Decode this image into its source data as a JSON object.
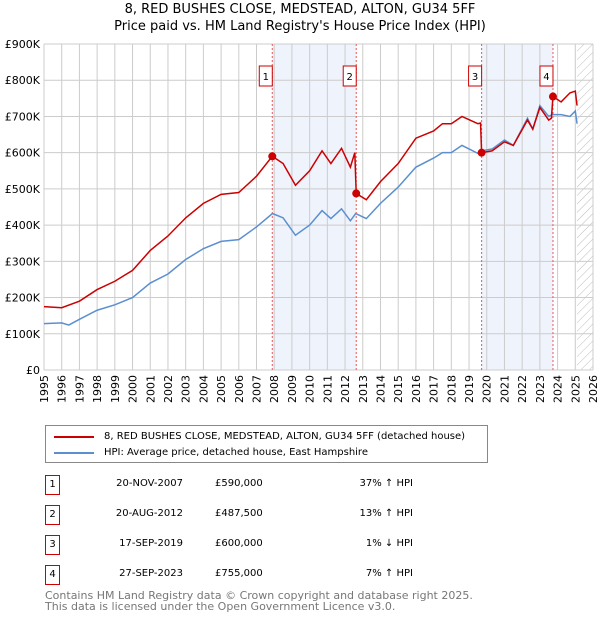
{
  "title": "8, RED BUSHES CLOSE, MEDSTEAD, ALTON, GU34 5FF",
  "subtitle": "Price paid vs. HM Land Registry's House Price Index (HPI)",
  "legend": [
    {
      "label": "8, RED BUSHES CLOSE, MEDSTEAD, ALTON, GU34 5FF (detached house)",
      "color": "#cc0000"
    },
    {
      "label": "HPI: Average price, detached house, East Hampshire",
      "color": "#5b8fd0"
    }
  ],
  "sales": [
    {
      "num": "1",
      "date": "20-NOV-2007",
      "price": "£590,000",
      "hpi": "37% ↑ HPI"
    },
    {
      "num": "2",
      "date": "20-AUG-2012",
      "price": "£487,500",
      "hpi": "13% ↑ HPI"
    },
    {
      "num": "3",
      "date": "17-SEP-2019",
      "price": "£600,000",
      "hpi": "1% ↓ HPI"
    },
    {
      "num": "4",
      "date": "27-SEP-2023",
      "price": "£755,000",
      "hpi": "7% ↑ HPI"
    }
  ],
  "footer": [
    "Contains HM Land Registry data © Crown copyright and database right 2025.",
    "This data is licensed under the Open Government Licence v3.0."
  ],
  "chart_data": {
    "type": "line",
    "xlim": [
      1995,
      2026
    ],
    "ylim": [
      0,
      900000
    ],
    "yticks": [
      0,
      100000,
      200000,
      300000,
      400000,
      500000,
      600000,
      700000,
      800000,
      900000
    ],
    "ytick_labels": [
      "£0",
      "£100K",
      "£200K",
      "£300K",
      "£400K",
      "£500K",
      "£600K",
      "£700K",
      "£800K",
      "£900K"
    ],
    "xticks": [
      "1995",
      "1996",
      "1997",
      "1998",
      "1999",
      "2000",
      "2001",
      "2002",
      "2003",
      "2004",
      "2005",
      "2006",
      "2007",
      "2008",
      "2009",
      "2010",
      "2011",
      "2012",
      "2013",
      "2014",
      "2015",
      "2016",
      "2017",
      "2018",
      "2019",
      "2020",
      "2021",
      "2022",
      "2023",
      "2024",
      "2025",
      "2026"
    ],
    "grid": true,
    "forecast_hatch_start": 2025.1,
    "shaded_ranges": [
      [
        2007.89,
        2012.63
      ],
      [
        2019.71,
        2023.74
      ]
    ],
    "sale_points": [
      {
        "label": "1",
        "x": 2007.89,
        "y": 590000
      },
      {
        "label": "2",
        "x": 2012.63,
        "y": 487500
      },
      {
        "label": "3",
        "x": 2019.71,
        "y": 600000
      },
      {
        "label": "4",
        "x": 2023.74,
        "y": 755000
      }
    ],
    "series": [
      {
        "name": "8, RED BUSHES CLOSE, MEDSTEAD, ALTON, GU34 5FF (detached house)",
        "color": "#cc0000",
        "points": [
          [
            1995,
            175000
          ],
          [
            1996,
            172000
          ],
          [
            1997,
            190000
          ],
          [
            1998,
            222000
          ],
          [
            1999,
            245000
          ],
          [
            2000,
            275000
          ],
          [
            2001,
            330000
          ],
          [
            2002,
            370000
          ],
          [
            2003,
            420000
          ],
          [
            2004,
            460000
          ],
          [
            2005,
            485000
          ],
          [
            2006,
            490000
          ],
          [
            2007,
            535000
          ],
          [
            2007.89,
            590000
          ],
          [
            2008.5,
            570000
          ],
          [
            2009.2,
            510000
          ],
          [
            2010,
            550000
          ],
          [
            2010.7,
            605000
          ],
          [
            2011.2,
            570000
          ],
          [
            2011.8,
            612000
          ],
          [
            2012.3,
            560000
          ],
          [
            2012.55,
            600000
          ],
          [
            2012.63,
            487500
          ],
          [
            2013.2,
            470000
          ],
          [
            2014,
            520000
          ],
          [
            2015,
            570000
          ],
          [
            2016,
            640000
          ],
          [
            2017,
            660000
          ],
          [
            2017.5,
            680000
          ],
          [
            2018,
            680000
          ],
          [
            2018.6,
            700000
          ],
          [
            2019.5,
            680000
          ],
          [
            2019.65,
            682000
          ],
          [
            2019.71,
            600000
          ],
          [
            2020.3,
            605000
          ],
          [
            2021,
            630000
          ],
          [
            2021.5,
            620000
          ],
          [
            2022.3,
            690000
          ],
          [
            2022.6,
            665000
          ],
          [
            2023,
            725000
          ],
          [
            2023.5,
            690000
          ],
          [
            2023.65,
            695000
          ],
          [
            2023.74,
            755000
          ],
          [
            2024.2,
            740000
          ],
          [
            2024.7,
            765000
          ],
          [
            2025,
            770000
          ],
          [
            2025.1,
            730000
          ]
        ]
      },
      {
        "name": "HPI: Average price, detached house, East Hampshire",
        "color": "#5b8fd0",
        "points": [
          [
            1995,
            128000
          ],
          [
            1996,
            130000
          ],
          [
            1996.4,
            124000
          ],
          [
            1997,
            140000
          ],
          [
            1998,
            165000
          ],
          [
            1999,
            180000
          ],
          [
            2000,
            200000
          ],
          [
            2001,
            240000
          ],
          [
            2002,
            265000
          ],
          [
            2003,
            305000
          ],
          [
            2004,
            335000
          ],
          [
            2005,
            355000
          ],
          [
            2006,
            360000
          ],
          [
            2007,
            395000
          ],
          [
            2007.9,
            432000
          ],
          [
            2008.5,
            420000
          ],
          [
            2009.2,
            372000
          ],
          [
            2010,
            400000
          ],
          [
            2010.7,
            440000
          ],
          [
            2011.2,
            418000
          ],
          [
            2011.8,
            445000
          ],
          [
            2012.3,
            412000
          ],
          [
            2012.6,
            432000
          ],
          [
            2013.2,
            418000
          ],
          [
            2014,
            460000
          ],
          [
            2015,
            505000
          ],
          [
            2016,
            560000
          ],
          [
            2017,
            585000
          ],
          [
            2017.5,
            600000
          ],
          [
            2018,
            600000
          ],
          [
            2018.6,
            620000
          ],
          [
            2019.5,
            598000
          ],
          [
            2019.7,
            605000
          ],
          [
            2020.3,
            610000
          ],
          [
            2021,
            635000
          ],
          [
            2021.5,
            620000
          ],
          [
            2022.3,
            695000
          ],
          [
            2022.6,
            665000
          ],
          [
            2023,
            730000
          ],
          [
            2023.5,
            700000
          ],
          [
            2023.7,
            705000
          ],
          [
            2024.2,
            705000
          ],
          [
            2024.7,
            700000
          ],
          [
            2025,
            715000
          ],
          [
            2025.1,
            680000
          ]
        ]
      }
    ]
  }
}
